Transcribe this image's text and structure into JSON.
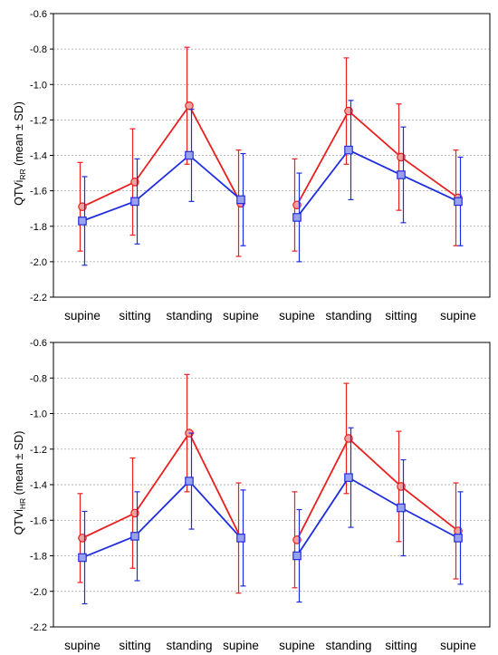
{
  "chart_data": [
    {
      "type": "line",
      "ylabel": "QTVi",
      "ylabel_subscript": "RR",
      "ylabel_suffix": " (mean ± SD)",
      "ylim": [
        -2.2,
        -0.6
      ],
      "yticks": [
        -0.6,
        -0.8,
        -1.0,
        -1.2,
        -1.4,
        -1.6,
        -1.8,
        -2.0,
        -2.2
      ],
      "ytick_labels": [
        "-0.6",
        "-0.8",
        "-1.0",
        "-1.2",
        "-1.4",
        "-1.6",
        "-1.8",
        "-2.0",
        "-2.2"
      ],
      "grid": "horizontal-dashed",
      "categories": [
        "supine",
        "sitting",
        "standing",
        "supine",
        "supine",
        "standing",
        "sitting",
        "supine"
      ],
      "groups": [
        [
          0,
          1,
          2,
          3
        ],
        [
          4,
          5,
          6,
          7
        ]
      ],
      "series": [
        {
          "color": "#e8201f",
          "marker": "circle",
          "values": [
            -1.69,
            -1.55,
            -1.12,
            -1.67,
            -1.68,
            -1.15,
            -1.41,
            -1.64
          ],
          "sd": [
            0.25,
            0.3,
            0.33,
            0.3,
            0.26,
            0.3,
            0.3,
            0.27
          ]
        },
        {
          "color": "#1f2de0",
          "marker": "square",
          "values": [
            -1.77,
            -1.66,
            -1.4,
            -1.65,
            -1.75,
            -1.37,
            -1.51,
            -1.66
          ],
          "sd": [
            0.25,
            0.24,
            0.26,
            0.26,
            0.25,
            0.28,
            0.27,
            0.25
          ]
        }
      ]
    },
    {
      "type": "line",
      "ylabel": "QTVi",
      "ylabel_subscript": "HR",
      "ylabel_suffix": " (mean ± SD)",
      "ylim": [
        -2.2,
        -0.6
      ],
      "yticks": [
        -0.6,
        -0.8,
        -1.0,
        -1.2,
        -1.4,
        -1.6,
        -1.8,
        -2.0,
        -2.2
      ],
      "ytick_labels": [
        "-0.6",
        "-0.8",
        "-1.0",
        "-1.2",
        "-1.4",
        "-1.6",
        "-1.8",
        "-2.0",
        "-2.2"
      ],
      "grid": "horizontal-dashed",
      "categories": [
        "supine",
        "sitting",
        "standing",
        "supine",
        "supine",
        "standing",
        "sitting",
        "supine"
      ],
      "groups": [
        [
          0,
          1,
          2,
          3
        ],
        [
          4,
          5,
          6,
          7
        ]
      ],
      "series": [
        {
          "color": "#e8201f",
          "marker": "circle",
          "values": [
            -1.7,
            -1.56,
            -1.11,
            -1.7,
            -1.71,
            -1.14,
            -1.41,
            -1.66
          ],
          "sd": [
            0.25,
            0.31,
            0.33,
            0.31,
            0.27,
            0.31,
            0.31,
            0.27
          ]
        },
        {
          "color": "#1f2de0",
          "marker": "square",
          "values": [
            -1.81,
            -1.69,
            -1.38,
            -1.7,
            -1.8,
            -1.36,
            -1.53,
            -1.7
          ],
          "sd": [
            0.26,
            0.25,
            0.27,
            0.27,
            0.26,
            0.28,
            0.27,
            0.26
          ]
        }
      ]
    }
  ]
}
